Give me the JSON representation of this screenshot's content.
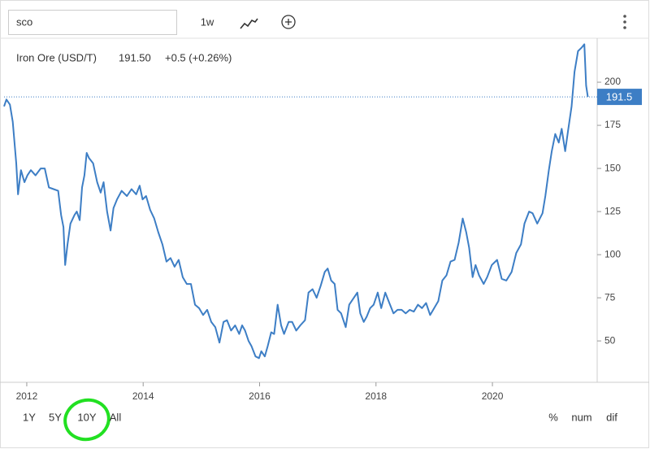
{
  "search": "sco",
  "toolbar": {
    "interval": "1w"
  },
  "chart_data": {
    "type": "line",
    "x": [
      2011.61,
      2011.65,
      2011.71,
      2011.76,
      2011.82,
      2011.85,
      2011.9,
      2011.96,
      2012.01,
      2012.07,
      2012.15,
      2012.24,
      2012.31,
      2012.38,
      2012.46,
      2012.54,
      2012.59,
      2012.63,
      2012.66,
      2012.7,
      2012.75,
      2012.82,
      2012.86,
      2012.91,
      2012.95,
      2012.99,
      2013.03,
      2013.07,
      2013.14,
      2013.21,
      2013.27,
      2013.32,
      2013.38,
      2013.44,
      2013.49,
      2013.55,
      2013.63,
      2013.72,
      2013.8,
      2013.88,
      2013.94,
      2013.99,
      2014.05,
      2014.12,
      2014.19,
      2014.26,
      2014.33,
      2014.4,
      2014.47,
      2014.54,
      2014.61,
      2014.68,
      2014.75,
      2014.82,
      2014.89,
      2014.96,
      2015.03,
      2015.1,
      2015.17,
      2015.24,
      2015.31,
      2015.38,
      2015.44,
      2015.51,
      2015.58,
      2015.65,
      2015.7,
      2015.75,
      2015.81,
      2015.86,
      2015.93,
      2015.99,
      2016.03,
      2016.09,
      2016.14,
      2016.2,
      2016.25,
      2016.31,
      2016.37,
      2016.42,
      2016.5,
      2016.56,
      2016.63,
      2016.7,
      2016.78,
      2016.84,
      2016.91,
      2016.98,
      2017.05,
      2017.12,
      2017.17,
      2017.23,
      2017.29,
      2017.34,
      2017.4,
      2017.48,
      2017.54,
      2017.62,
      2017.68,
      2017.73,
      2017.79,
      2017.84,
      2017.9,
      2017.96,
      2018.03,
      2018.09,
      2018.16,
      2018.23,
      2018.3,
      2018.37,
      2018.44,
      2018.51,
      2018.58,
      2018.65,
      2018.72,
      2018.79,
      2018.86,
      2018.93,
      2019.0,
      2019.07,
      2019.14,
      2019.21,
      2019.28,
      2019.35,
      2019.42,
      2019.49,
      2019.55,
      2019.6,
      2019.66,
      2019.71,
      2019.77,
      2019.85,
      2019.91,
      2019.99,
      2020.08,
      2020.16,
      2020.24,
      2020.33,
      2020.41,
      2020.49,
      2020.55,
      2020.63,
      2020.69,
      2020.77,
      2020.86,
      2020.91,
      2020.97,
      2021.02,
      2021.08,
      2021.14,
      2021.19,
      2021.25,
      2021.3,
      2021.36,
      2021.41,
      2021.47,
      2021.53,
      2021.58,
      2021.61,
      2021.64
    ],
    "series": [
      {
        "name": "Iron Ore (USD/T)",
        "color": "#3d7ec5",
        "values": [
          186,
          190,
          187,
          177,
          153,
          135,
          149,
          142,
          146,
          149,
          146,
          150,
          150,
          139,
          138,
          137,
          123,
          116,
          94,
          106,
          118,
          123,
          125,
          120,
          139,
          146,
          159,
          156,
          153,
          142,
          136,
          142,
          125,
          114,
          127,
          132,
          137,
          134,
          138,
          135,
          140,
          132,
          134,
          126,
          121,
          113,
          106,
          96,
          98,
          93,
          97,
          87,
          83,
          83,
          71,
          69,
          65,
          68,
          61,
          58,
          49,
          61,
          62,
          56,
          59,
          54,
          59,
          56,
          50,
          47,
          41,
          40,
          44,
          41,
          47,
          55,
          54,
          71,
          59,
          54,
          61,
          61,
          56,
          59,
          62,
          78,
          80,
          75,
          82,
          90,
          92,
          85,
          83,
          68,
          66,
          58,
          71,
          75,
          78,
          66,
          61,
          64,
          69,
          71,
          78,
          69,
          78,
          72,
          66,
          68,
          68,
          66,
          68,
          67,
          71,
          69,
          72,
          65,
          69,
          73,
          85,
          88,
          96,
          97,
          107,
          121,
          113,
          104,
          87,
          94,
          88,
          83,
          87,
          94,
          97,
          86,
          85,
          90,
          101,
          106,
          118,
          125,
          124,
          118,
          124,
          134,
          149,
          160,
          170,
          165,
          173,
          160,
          172,
          186,
          206,
          218,
          220,
          222,
          198,
          191.5
        ]
      }
    ],
    "xlim": [
      2011.61,
      2021.8
    ],
    "xticks": [
      2012,
      2014,
      2016,
      2018,
      2020
    ],
    "ylim": [
      26,
      225.5
    ],
    "yticks": [
      50,
      75,
      100,
      125,
      150,
      175,
      200
    ],
    "y_axis_side": "right",
    "last_price": 191.5,
    "quote": {
      "price": "191.50",
      "change": "+0.5 (+0.26%)",
      "change_color": "#3cbc3c"
    }
  },
  "range_buttons": [
    "1Y",
    "5Y",
    "10Y",
    "All"
  ],
  "selected_range": 2,
  "display_modes": [
    "%",
    "num",
    "dif"
  ]
}
